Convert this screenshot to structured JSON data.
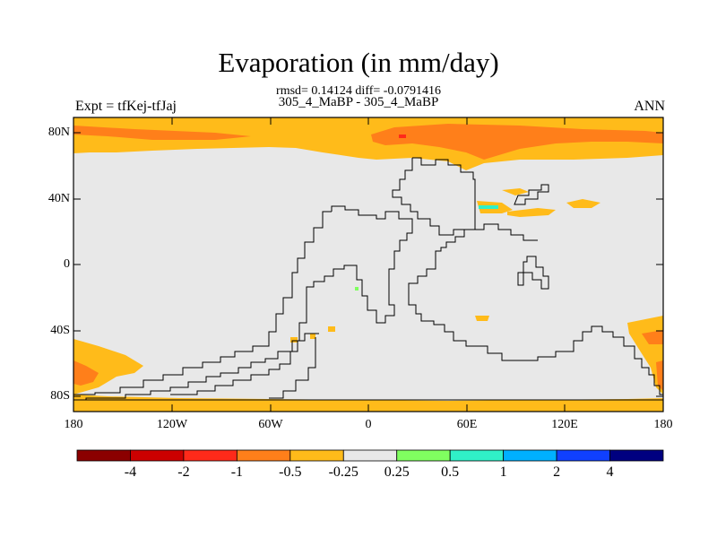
{
  "title": "Evaporation (in mm/day)",
  "stats": "rmsd= 0.14124 diff= -0.0791416",
  "subtitle": "305_4_MaBP - 305_4_MaBP",
  "expt_label": "Expt = tfKej-tfJaj",
  "season": "ANN",
  "y_ticks": [
    "80N",
    "40N",
    "0",
    "40S",
    "80S"
  ],
  "x_ticks": [
    "180",
    "120W",
    "60W",
    "0",
    "60E",
    "120E",
    "180"
  ],
  "colorbar": {
    "labels": [
      "-4",
      "-2",
      "-1",
      "-0.5",
      "-0.25",
      "0.25",
      "0.5",
      "1",
      "2",
      "4"
    ],
    "colors": [
      "#8b0000",
      "#cc0000",
      "#ff2a1a",
      "#ff7f1a",
      "#ffbb1a",
      "#e8e8e8",
      "#80ff60",
      "#30f0c8",
      "#00b0ff",
      "#1040ff",
      "#000080"
    ]
  },
  "colors": {
    "background": "#ffffff",
    "land_neutral": "#e8e8e8",
    "orange_light": "#ffbb1a",
    "orange_dark": "#ff7f1a",
    "red": "#ff2a1a",
    "green": "#80ff60",
    "cyan": "#30f0c8"
  }
}
